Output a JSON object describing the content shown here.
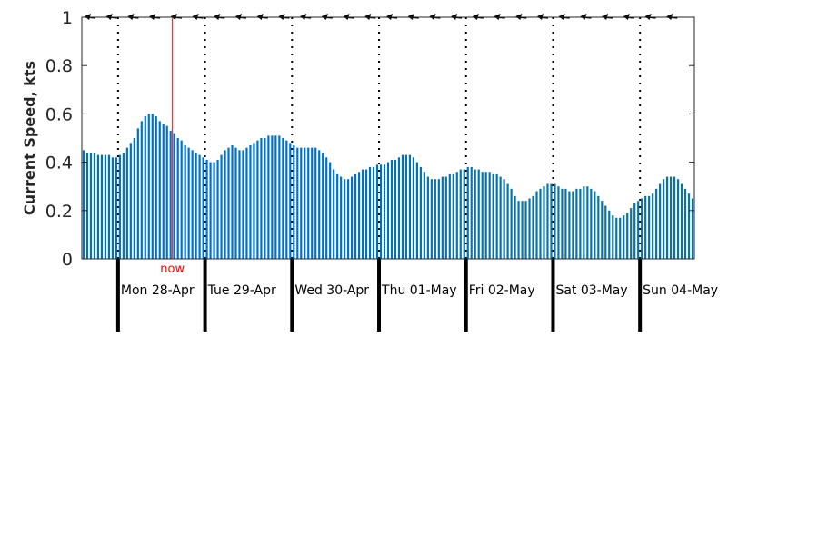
{
  "chart_data": {
    "type": "bar",
    "title": "",
    "xlabel": "",
    "ylabel": "Current Speed, kts",
    "ylim": [
      0,
      1
    ],
    "yticks": [
      0,
      0.2,
      0.4,
      0.6,
      0.8,
      1
    ],
    "ytick_labels": [
      "0",
      "0.2",
      "0.4",
      "0.6",
      "0.8",
      "1"
    ],
    "grid": false,
    "legend": "none",
    "interval_hours": 1,
    "now_label": "now",
    "now_hour": 25,
    "day_start_hour": 10,
    "day_length_hours": 24,
    "days": [
      "Mon 28-Apr",
      "Tue 29-Apr",
      "Wed 30-Apr",
      "Thu 01-May",
      "Fri 02-May",
      "Sat 03-May",
      "Sun 04-May"
    ],
    "values": [
      0.45,
      0.44,
      0.44,
      0.44,
      0.43,
      0.43,
      0.43,
      0.43,
      0.42,
      0.42,
      0.43,
      0.44,
      0.46,
      0.48,
      0.5,
      0.54,
      0.57,
      0.59,
      0.6,
      0.6,
      0.59,
      0.57,
      0.56,
      0.55,
      0.53,
      0.52,
      0.5,
      0.49,
      0.47,
      0.46,
      0.45,
      0.44,
      0.43,
      0.42,
      0.41,
      0.4,
      0.4,
      0.41,
      0.43,
      0.45,
      0.46,
      0.47,
      0.46,
      0.45,
      0.45,
      0.46,
      0.47,
      0.48,
      0.49,
      0.5,
      0.5,
      0.51,
      0.51,
      0.51,
      0.51,
      0.5,
      0.49,
      0.48,
      0.47,
      0.46,
      0.46,
      0.46,
      0.46,
      0.46,
      0.46,
      0.45,
      0.44,
      0.42,
      0.4,
      0.37,
      0.35,
      0.34,
      0.33,
      0.33,
      0.34,
      0.35,
      0.36,
      0.37,
      0.37,
      0.38,
      0.38,
      0.39,
      0.39,
      0.39,
      0.4,
      0.41,
      0.41,
      0.42,
      0.43,
      0.43,
      0.43,
      0.42,
      0.4,
      0.38,
      0.36,
      0.34,
      0.33,
      0.33,
      0.33,
      0.34,
      0.34,
      0.35,
      0.35,
      0.36,
      0.37,
      0.37,
      0.38,
      0.38,
      0.37,
      0.37,
      0.36,
      0.36,
      0.36,
      0.35,
      0.35,
      0.34,
      0.33,
      0.31,
      0.29,
      0.26,
      0.24,
      0.24,
      0.24,
      0.25,
      0.26,
      0.28,
      0.29,
      0.3,
      0.31,
      0.31,
      0.31,
      0.3,
      0.29,
      0.29,
      0.28,
      0.28,
      0.29,
      0.29,
      0.3,
      0.3,
      0.29,
      0.28,
      0.26,
      0.24,
      0.22,
      0.2,
      0.18,
      0.17,
      0.17,
      0.18,
      0.19,
      0.21,
      0.23,
      0.24,
      0.25,
      0.26,
      0.26,
      0.27,
      0.29,
      0.31,
      0.33,
      0.34,
      0.34,
      0.34,
      0.33,
      0.31,
      0.29,
      0.27,
      0.25
    ],
    "direction_arrows": {
      "row_value": 1,
      "glyph": "left-arrow",
      "count": 28
    },
    "colors": {
      "bar": "#0072bd",
      "now_line": "#ff0000",
      "day_line": "#000000"
    }
  }
}
